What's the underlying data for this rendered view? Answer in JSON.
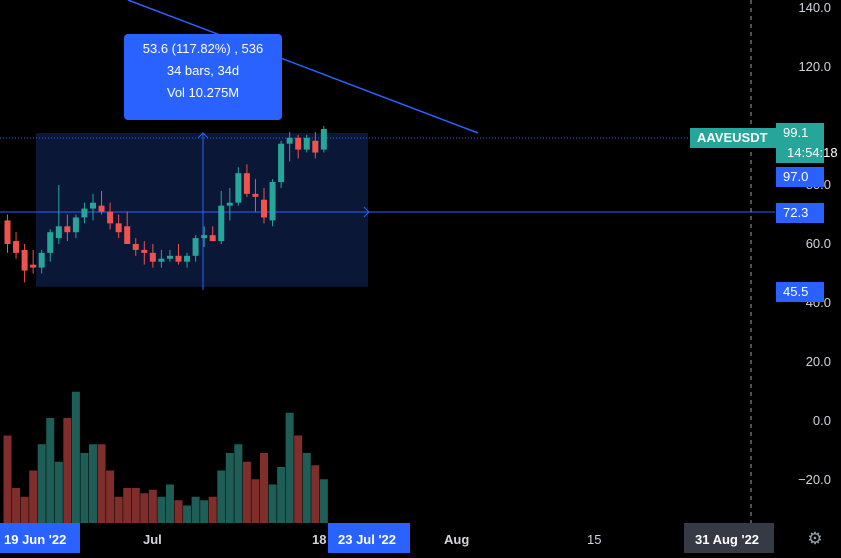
{
  "symbol": "AAVEUSDT",
  "countdown": "14:54:18",
  "measure": {
    "line1": "53.6 (117.82%) , 536",
    "line2": "34 bars, 34d",
    "line3": "Vol 10.275M"
  },
  "price_labels": {
    "last": "99.1",
    "upper": "97.0",
    "mid": "72.3",
    "lower": "45.5"
  },
  "x_badges": {
    "start": "19 Jun '22",
    "end": "23 Jul '22",
    "cursor": "31 Aug '22"
  },
  "x_labels": {
    "jul": "Jul",
    "d18": "18",
    "aug": "Aug",
    "d15": "15"
  },
  "colors": {
    "up": "#26a69a",
    "down": "#ef5350",
    "accent": "#2962ff",
    "vol_up": "#1e5e57",
    "vol_down": "#7f2e2b"
  },
  "chart_data": {
    "type": "candlestick",
    "ylim": [
      -35,
      150
    ],
    "yticks": [
      "140.0",
      "120.0",
      "80.0",
      "60.0",
      "40.0",
      "20.0",
      "0.0",
      "−20.0"
    ],
    "yticks_values": [
      140,
      120,
      80,
      60,
      40,
      20,
      0,
      -20
    ],
    "candles": [
      [
        68,
        70,
        57,
        60
      ],
      [
        61,
        64,
        55,
        57
      ],
      [
        58,
        60,
        47,
        51
      ],
      [
        53,
        58,
        50,
        52
      ],
      [
        52,
        58,
        50,
        57
      ],
      [
        57,
        65,
        54,
        64
      ],
      [
        62,
        80,
        60,
        66
      ],
      [
        66,
        70,
        61,
        64
      ],
      [
        64,
        70,
        62,
        69
      ],
      [
        69,
        74,
        67,
        72
      ],
      [
        72,
        77,
        68,
        74
      ],
      [
        73,
        78,
        70,
        71
      ],
      [
        71,
        74,
        65,
        67
      ],
      [
        67,
        70,
        62,
        64
      ],
      [
        66,
        71,
        61,
        60
      ],
      [
        60,
        62,
        56,
        58
      ],
      [
        58,
        61,
        53,
        57
      ],
      [
        57,
        60,
        52,
        54
      ],
      [
        54,
        58,
        52,
        55
      ],
      [
        55,
        58,
        54,
        56
      ],
      [
        56,
        60,
        53,
        54
      ],
      [
        54,
        57,
        52,
        56
      ],
      [
        56,
        63,
        54,
        62
      ],
      [
        62,
        66,
        59,
        63
      ],
      [
        63,
        66,
        61,
        61
      ],
      [
        61,
        78,
        60,
        73
      ],
      [
        73,
        79,
        68,
        74
      ],
      [
        74,
        86,
        73,
        84
      ],
      [
        84,
        87,
        76,
        77
      ],
      [
        77,
        82,
        71,
        76
      ],
      [
        75,
        79,
        67,
        69
      ],
      [
        68,
        82,
        66,
        81
      ],
      [
        81,
        95,
        79,
        94
      ],
      [
        94,
        98,
        88,
        96
      ],
      [
        96,
        97,
        89,
        92
      ],
      [
        92,
        97,
        91,
        96
      ],
      [
        95,
        98,
        89,
        91
      ],
      [
        92,
        100,
        91,
        99
      ]
    ],
    "volume_levels": [
      5,
      2,
      1.5,
      3,
      4.5,
      6,
      3.5,
      6,
      7.5,
      4,
      4.5,
      4.5,
      3,
      1.5,
      2,
      2,
      1.7,
      1.9,
      1.5,
      2.2,
      1.3,
      1,
      1.5,
      1.3,
      1.5,
      3,
      4,
      4.5,
      3.5,
      2.5,
      4,
      2.2,
      3.2,
      6.3,
      5,
      4,
      3.3,
      2.5
    ]
  }
}
